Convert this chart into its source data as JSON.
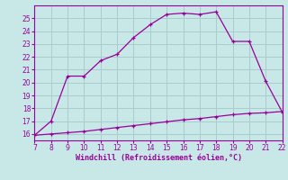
{
  "xlabel": "Windchill (Refroidissement éolien,°C)",
  "x_main": [
    7,
    8,
    9,
    10,
    11,
    12,
    13,
    14,
    15,
    16,
    17,
    18,
    19,
    20,
    21,
    22
  ],
  "y_main": [
    15.9,
    17.0,
    20.5,
    20.5,
    21.7,
    22.2,
    23.5,
    24.5,
    25.3,
    25.4,
    25.3,
    25.5,
    23.2,
    23.2,
    20.1,
    17.7
  ],
  "x_flat": [
    7,
    8,
    9,
    10,
    11,
    12,
    13,
    14,
    15,
    16,
    17,
    18,
    19,
    20,
    21,
    22
  ],
  "y_flat": [
    15.9,
    16.0,
    16.1,
    16.2,
    16.35,
    16.5,
    16.65,
    16.8,
    16.95,
    17.1,
    17.2,
    17.35,
    17.5,
    17.6,
    17.65,
    17.75
  ],
  "line_color": "#990099",
  "bg_color": "#c8e8e8",
  "grid_color": "#aacccc",
  "tick_color": "#990099",
  "label_color": "#990099",
  "xlim": [
    7,
    22
  ],
  "ylim": [
    15.5,
    26.0
  ],
  "yticks": [
    16,
    17,
    18,
    19,
    20,
    21,
    22,
    23,
    24,
    25
  ],
  "xticks": [
    7,
    8,
    9,
    10,
    11,
    12,
    13,
    14,
    15,
    16,
    17,
    18,
    19,
    20,
    21,
    22
  ]
}
